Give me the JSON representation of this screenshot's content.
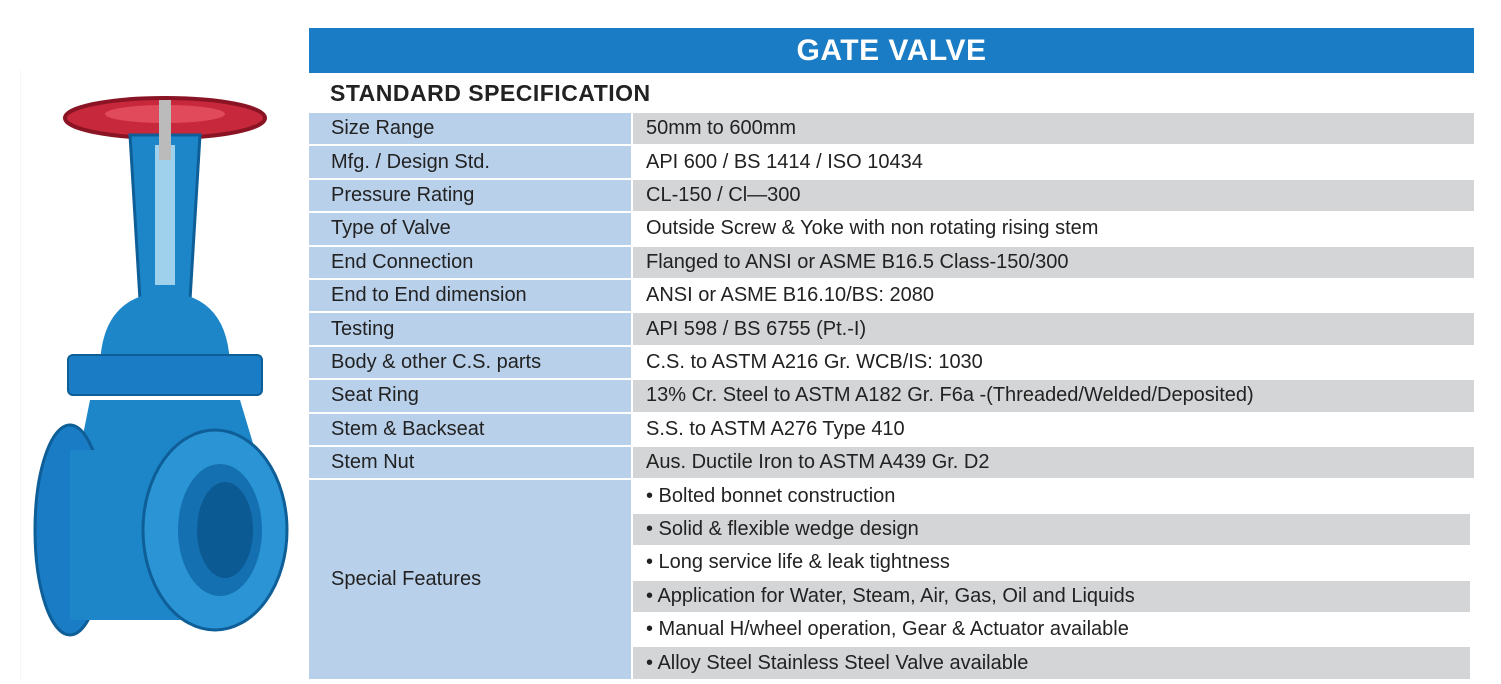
{
  "header": {
    "title": "GATE VALVE",
    "subtitle": "STANDARD SPECIFICATION"
  },
  "table": {
    "rows": [
      [
        "Size Range",
        "50mm to 600mm"
      ],
      [
        "Mfg. / Design Std.",
        "API 600 / BS 1414 / ISO 10434"
      ],
      [
        "Pressure Rating",
        "CL-150 / Cl—300"
      ],
      [
        "Type of Valve",
        "Outside Screw & Yoke with non rotating rising stem"
      ],
      [
        "End Connection",
        "Flanged to ANSI or ASME B16.5 Class-150/300"
      ],
      [
        "End to End dimension",
        "ANSI or ASME B16.10/BS: 2080"
      ],
      [
        "Testing",
        "API 598 / BS 6755 (Pt.-I)"
      ],
      [
        "Body & other C.S. parts",
        "C.S. to ASTM A216 Gr. WCB/IS: 1030"
      ],
      [
        "Seat Ring",
        "13% Cr. Steel to ASTM A182 Gr. F6a -(Threaded/Welded/Deposited)"
      ],
      [
        "Stem & Backseat",
        "S.S. to ASTM A276 Type 410"
      ],
      [
        "Stem Nut",
        "Aus. Ductile Iron to ASTM A439 Gr. D2"
      ]
    ],
    "special_features": {
      "label": "Special Features",
      "items": [
        "• Bolted bonnet construction",
        "• Solid & flexible wedge design",
        "• Long service life & leak tightness",
        "• Application for Water, Steam, Air, Gas, Oil and Liquids",
        "• Manual H/wheel operation, Gear & Actuator available",
        "• Alloy Steel Stainless Steel Valve available"
      ]
    }
  }
}
